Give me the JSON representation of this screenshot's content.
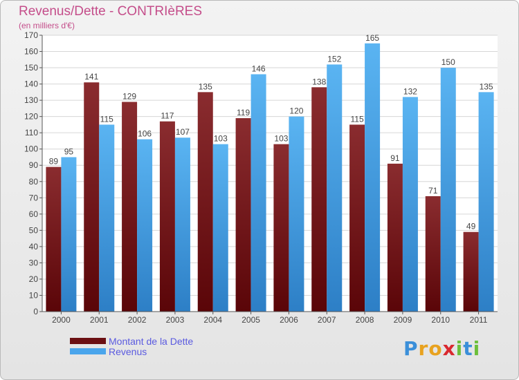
{
  "header": {
    "title": "Revenus/Dette - CONTRIèRES",
    "subtitle": "(en milliers d'€)"
  },
  "legend": {
    "items": [
      {
        "label": "Montant de la Dette",
        "color": "#6b0f12"
      },
      {
        "label": "Revenus",
        "color": "#4aa5ec"
      }
    ]
  },
  "logo": {
    "letters": [
      {
        "char": "P",
        "color": "#3b8fd9"
      },
      {
        "char": "r",
        "color": "#e8a21f"
      },
      {
        "char": "o",
        "color": "#e8a21f"
      },
      {
        "char": "x",
        "color": "#d9282f"
      },
      {
        "char": "i",
        "color": "#6cbf3b"
      },
      {
        "char": "t",
        "color": "#3b8fd9"
      },
      {
        "char": "i",
        "color": "#6cbf3b"
      }
    ]
  },
  "chart_data": {
    "type": "bar",
    "title": "Revenus/Dette - CONTRIèRES",
    "subtitle": "(en milliers d'€)",
    "xlabel": "",
    "ylabel": "",
    "categories": [
      "2000",
      "2001",
      "2002",
      "2003",
      "2004",
      "2005",
      "2006",
      "2007",
      "2008",
      "2009",
      "2010",
      "2011"
    ],
    "series": [
      {
        "name": "Montant de la Dette",
        "color": "#6b0f12",
        "values": [
          89,
          141,
          129,
          117,
          135,
          119,
          103,
          138,
          115,
          91,
          71,
          49
        ]
      },
      {
        "name": "Revenus",
        "color": "#4aa5ec",
        "values": [
          95,
          115,
          106,
          107,
          103,
          146,
          120,
          152,
          165,
          132,
          150,
          135
        ]
      }
    ],
    "ylim": [
      0,
      170
    ],
    "yticks": [
      0,
      10,
      20,
      30,
      40,
      50,
      60,
      70,
      80,
      90,
      100,
      110,
      120,
      130,
      140,
      150,
      160,
      170
    ],
    "grid": true,
    "legend_position": "bottom-left"
  }
}
